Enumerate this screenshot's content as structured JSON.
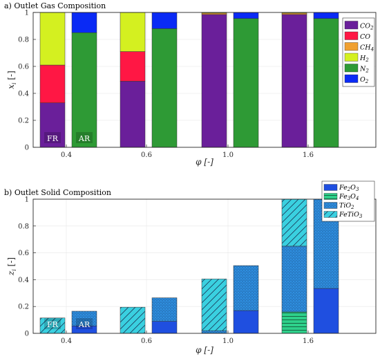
{
  "chart_data": [
    {
      "type": "bar",
      "stacked": true,
      "title": "a) Outlet Gas Composition",
      "xlabel": "φ [-]",
      "ylabel_main": "x",
      "ylabel_sub": "i",
      "ylabel_unit": "[-]",
      "ylim": [
        0,
        1
      ],
      "yticks": [
        "0",
        "0.2",
        "0.4",
        "0.6",
        "0.8",
        "1"
      ],
      "categories": [
        "0.4",
        "0.6",
        "1.0",
        "1.6"
      ],
      "group_labels": [
        "FR",
        "AR"
      ],
      "legend_position": "top-right",
      "series": [
        {
          "name": "CO",
          "sub": "2",
          "color": "#6a1f9a",
          "fr": [
            0.33,
            0.49,
            0.985,
            0.985
          ],
          "ar": [
            0.0,
            0.0,
            0.0,
            0.0
          ]
        },
        {
          "name": "CO",
          "sub": "",
          "color": "#ff1744",
          "fr": [
            0.28,
            0.22,
            0.0,
            0.0
          ],
          "ar": [
            0.0,
            0.0,
            0.0,
            0.0
          ]
        },
        {
          "name": "CH",
          "sub": "4",
          "color": "#f0a030",
          "fr": [
            0.0,
            0.0,
            0.01,
            0.01
          ],
          "ar": [
            0.0,
            0.0,
            0.0,
            0.0
          ]
        },
        {
          "name": "H",
          "sub": "2",
          "color": "#d4f020",
          "fr": [
            0.39,
            0.29,
            0.005,
            0.005
          ],
          "ar": [
            0.0,
            0.0,
            0.0,
            0.0
          ]
        },
        {
          "name": "N",
          "sub": "2",
          "color": "#2e9a35",
          "fr": [
            0.0,
            0.0,
            0.0,
            0.0
          ],
          "ar": [
            0.85,
            0.88,
            0.955,
            0.955
          ]
        },
        {
          "name": "O",
          "sub": "2",
          "color": "#0a2af5",
          "fr": [
            0.0,
            0.0,
            0.0,
            0.0
          ],
          "ar": [
            0.15,
            0.12,
            0.045,
            0.045
          ]
        }
      ]
    },
    {
      "type": "bar",
      "stacked": true,
      "title": "b) Outlet Solid Composition",
      "xlabel": "φ [-]",
      "ylabel_main": "z",
      "ylabel_sub": "i",
      "ylabel_unit": "[-]",
      "ylim": [
        0,
        1
      ],
      "yticks": [
        "0",
        "0.2",
        "0.4",
        "0.6",
        "0.8",
        "1"
      ],
      "categories": [
        "0.4",
        "0.6",
        "1.0",
        "1.6"
      ],
      "group_labels": [
        "FR",
        "AR"
      ],
      "legend_position": "top-right",
      "series": [
        {
          "name": "Fe",
          "sub": "2",
          "name2": "O",
          "sub2": "3",
          "color": "#1f4fe0",
          "pattern": "solid",
          "fr": [
            0.0,
            0.0,
            0.0,
            0.0
          ],
          "ar": [
            0.055,
            0.09,
            0.17,
            0.335
          ]
        },
        {
          "name": "Fe",
          "sub": "3",
          "name2": "O",
          "sub2": "4",
          "color": "#2ed08a",
          "pattern": "hlines",
          "fr": [
            0.0,
            0.0,
            0.0,
            0.16
          ],
          "ar": [
            0.0,
            0.0,
            0.0,
            0.0
          ]
        },
        {
          "name": "TiO",
          "sub": "2",
          "name2": "",
          "sub2": "",
          "color": "#2f8fe0",
          "pattern": "dots",
          "fr": [
            0.0,
            0.0,
            0.02,
            0.49
          ],
          "ar": [
            0.11,
            0.175,
            0.335,
            0.665
          ]
        },
        {
          "name": "FeTiO",
          "sub": "3",
          "name2": "",
          "sub2": "",
          "color": "#3ad0e0",
          "pattern": "diag",
          "fr": [
            0.115,
            0.195,
            0.385,
            0.35
          ],
          "ar": [
            0.0,
            0.0,
            0.0,
            0.0
          ]
        }
      ]
    }
  ]
}
